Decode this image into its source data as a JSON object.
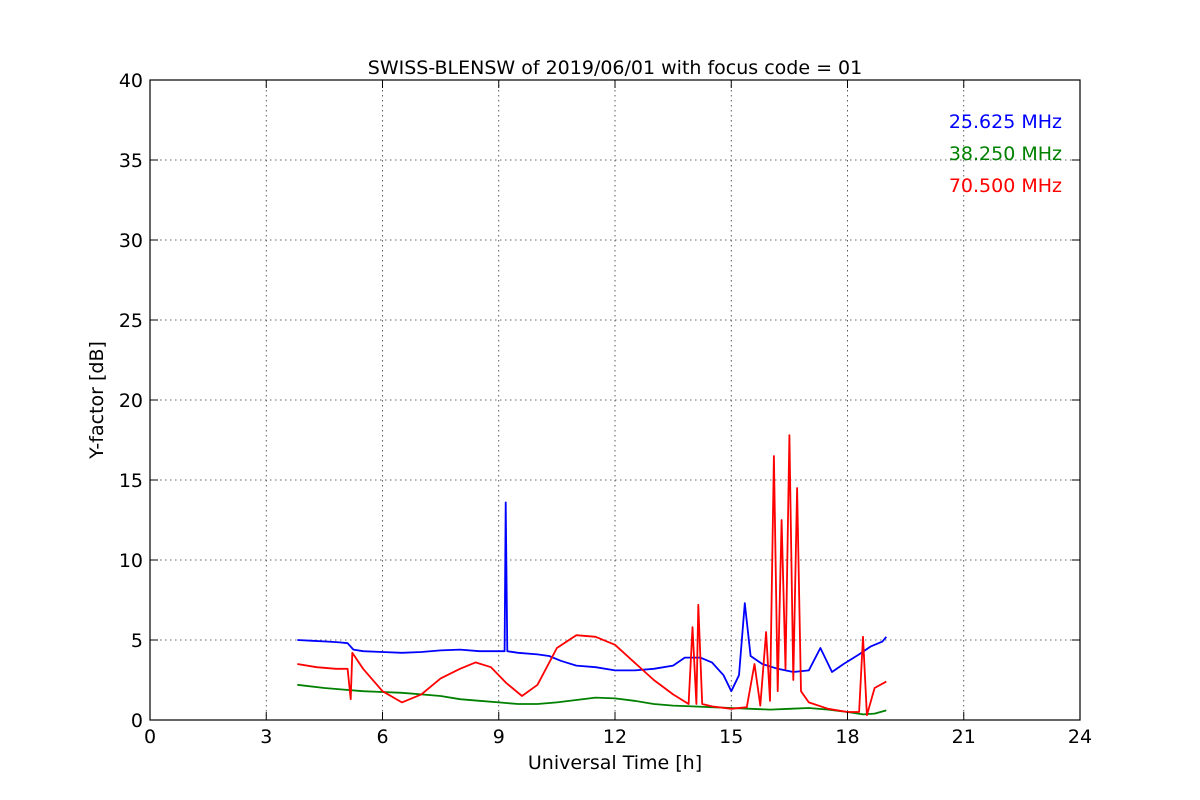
{
  "chart_data": {
    "type": "line",
    "title": "SWISS-BLENSW of 2019/06/01 with focus code = 01",
    "xlabel": "Universal Time [h]",
    "ylabel": "Y-factor [dB]",
    "xlim": [
      0,
      24
    ],
    "ylim": [
      0,
      40
    ],
    "xticks": [
      0,
      3,
      6,
      9,
      12,
      15,
      18,
      21,
      24
    ],
    "yticks": [
      0,
      5,
      10,
      15,
      20,
      25,
      30,
      35,
      40
    ],
    "grid": true,
    "legend_position": "top-right",
    "series": [
      {
        "name": "25.625 MHz",
        "color": "#0000ff",
        "points": [
          [
            3.8,
            5.0
          ],
          [
            4.2,
            4.95
          ],
          [
            4.6,
            4.9
          ],
          [
            4.9,
            4.85
          ],
          [
            5.1,
            4.8
          ],
          [
            5.25,
            4.4
          ],
          [
            5.5,
            4.3
          ],
          [
            6.0,
            4.25
          ],
          [
            6.5,
            4.2
          ],
          [
            7.0,
            4.25
          ],
          [
            7.5,
            4.35
          ],
          [
            8.0,
            4.4
          ],
          [
            8.5,
            4.3
          ],
          [
            9.0,
            4.3
          ],
          [
            9.15,
            4.3
          ],
          [
            9.18,
            13.6
          ],
          [
            9.22,
            4.3
          ],
          [
            9.5,
            4.2
          ],
          [
            10.0,
            4.1
          ],
          [
            10.3,
            4.0
          ],
          [
            10.6,
            3.7
          ],
          [
            11.0,
            3.4
          ],
          [
            11.5,
            3.3
          ],
          [
            12.0,
            3.1
          ],
          [
            12.5,
            3.1
          ],
          [
            13.0,
            3.2
          ],
          [
            13.5,
            3.4
          ],
          [
            13.8,
            3.9
          ],
          [
            14.2,
            3.9
          ],
          [
            14.5,
            3.6
          ],
          [
            14.8,
            2.8
          ],
          [
            15.0,
            1.8
          ],
          [
            15.2,
            2.8
          ],
          [
            15.35,
            7.3
          ],
          [
            15.5,
            4.0
          ],
          [
            15.8,
            3.5
          ],
          [
            16.2,
            3.2
          ],
          [
            16.6,
            3.0
          ],
          [
            17.0,
            3.1
          ],
          [
            17.3,
            4.5
          ],
          [
            17.6,
            3.0
          ],
          [
            17.9,
            3.5
          ],
          [
            18.3,
            4.1
          ],
          [
            18.6,
            4.6
          ],
          [
            18.9,
            4.9
          ],
          [
            19.0,
            5.2
          ]
        ]
      },
      {
        "name": "38.250 MHz",
        "color": "#008000",
        "points": [
          [
            3.8,
            2.2
          ],
          [
            4.5,
            2.0
          ],
          [
            5.0,
            1.9
          ],
          [
            5.5,
            1.8
          ],
          [
            6.0,
            1.75
          ],
          [
            6.5,
            1.7
          ],
          [
            7.0,
            1.6
          ],
          [
            7.5,
            1.5
          ],
          [
            8.0,
            1.3
          ],
          [
            8.5,
            1.2
          ],
          [
            9.0,
            1.1
          ],
          [
            9.5,
            1.0
          ],
          [
            10.0,
            1.0
          ],
          [
            10.5,
            1.1
          ],
          [
            11.0,
            1.25
          ],
          [
            11.5,
            1.4
          ],
          [
            12.0,
            1.35
          ],
          [
            12.5,
            1.2
          ],
          [
            13.0,
            1.0
          ],
          [
            13.5,
            0.9
          ],
          [
            14.0,
            0.85
          ],
          [
            14.5,
            0.8
          ],
          [
            15.0,
            0.75
          ],
          [
            15.5,
            0.7
          ],
          [
            16.0,
            0.65
          ],
          [
            16.5,
            0.7
          ],
          [
            17.0,
            0.75
          ],
          [
            17.5,
            0.65
          ],
          [
            18.0,
            0.5
          ],
          [
            18.4,
            0.35
          ],
          [
            18.7,
            0.4
          ],
          [
            19.0,
            0.6
          ]
        ]
      },
      {
        "name": "70.500 MHz",
        "color": "#ff0000",
        "points": [
          [
            3.8,
            3.5
          ],
          [
            4.3,
            3.3
          ],
          [
            4.8,
            3.2
          ],
          [
            5.1,
            3.2
          ],
          [
            5.18,
            1.3
          ],
          [
            5.22,
            4.2
          ],
          [
            5.5,
            3.2
          ],
          [
            6.0,
            1.8
          ],
          [
            6.5,
            1.1
          ],
          [
            7.0,
            1.6
          ],
          [
            7.5,
            2.6
          ],
          [
            8.0,
            3.2
          ],
          [
            8.4,
            3.6
          ],
          [
            8.8,
            3.3
          ],
          [
            9.2,
            2.3
          ],
          [
            9.6,
            1.5
          ],
          [
            10.0,
            2.2
          ],
          [
            10.5,
            4.5
          ],
          [
            11.0,
            5.3
          ],
          [
            11.5,
            5.2
          ],
          [
            12.0,
            4.7
          ],
          [
            12.5,
            3.6
          ],
          [
            13.0,
            2.5
          ],
          [
            13.5,
            1.6
          ],
          [
            13.9,
            1.0
          ],
          [
            14.0,
            5.8
          ],
          [
            14.1,
            1.0
          ],
          [
            14.15,
            7.2
          ],
          [
            14.25,
            1.0
          ],
          [
            14.5,
            0.85
          ],
          [
            15.0,
            0.7
          ],
          [
            15.4,
            0.8
          ],
          [
            15.6,
            3.5
          ],
          [
            15.75,
            0.9
          ],
          [
            15.9,
            5.5
          ],
          [
            16.0,
            1.2
          ],
          [
            16.1,
            16.5
          ],
          [
            16.2,
            1.8
          ],
          [
            16.3,
            12.5
          ],
          [
            16.4,
            3.2
          ],
          [
            16.5,
            17.8
          ],
          [
            16.6,
            2.5
          ],
          [
            16.7,
            14.5
          ],
          [
            16.8,
            1.8
          ],
          [
            17.0,
            1.1
          ],
          [
            17.5,
            0.7
          ],
          [
            18.0,
            0.5
          ],
          [
            18.3,
            0.5
          ],
          [
            18.4,
            5.2
          ],
          [
            18.5,
            0.3
          ],
          [
            18.7,
            2.0
          ],
          [
            19.0,
            2.4
          ]
        ]
      }
    ]
  }
}
